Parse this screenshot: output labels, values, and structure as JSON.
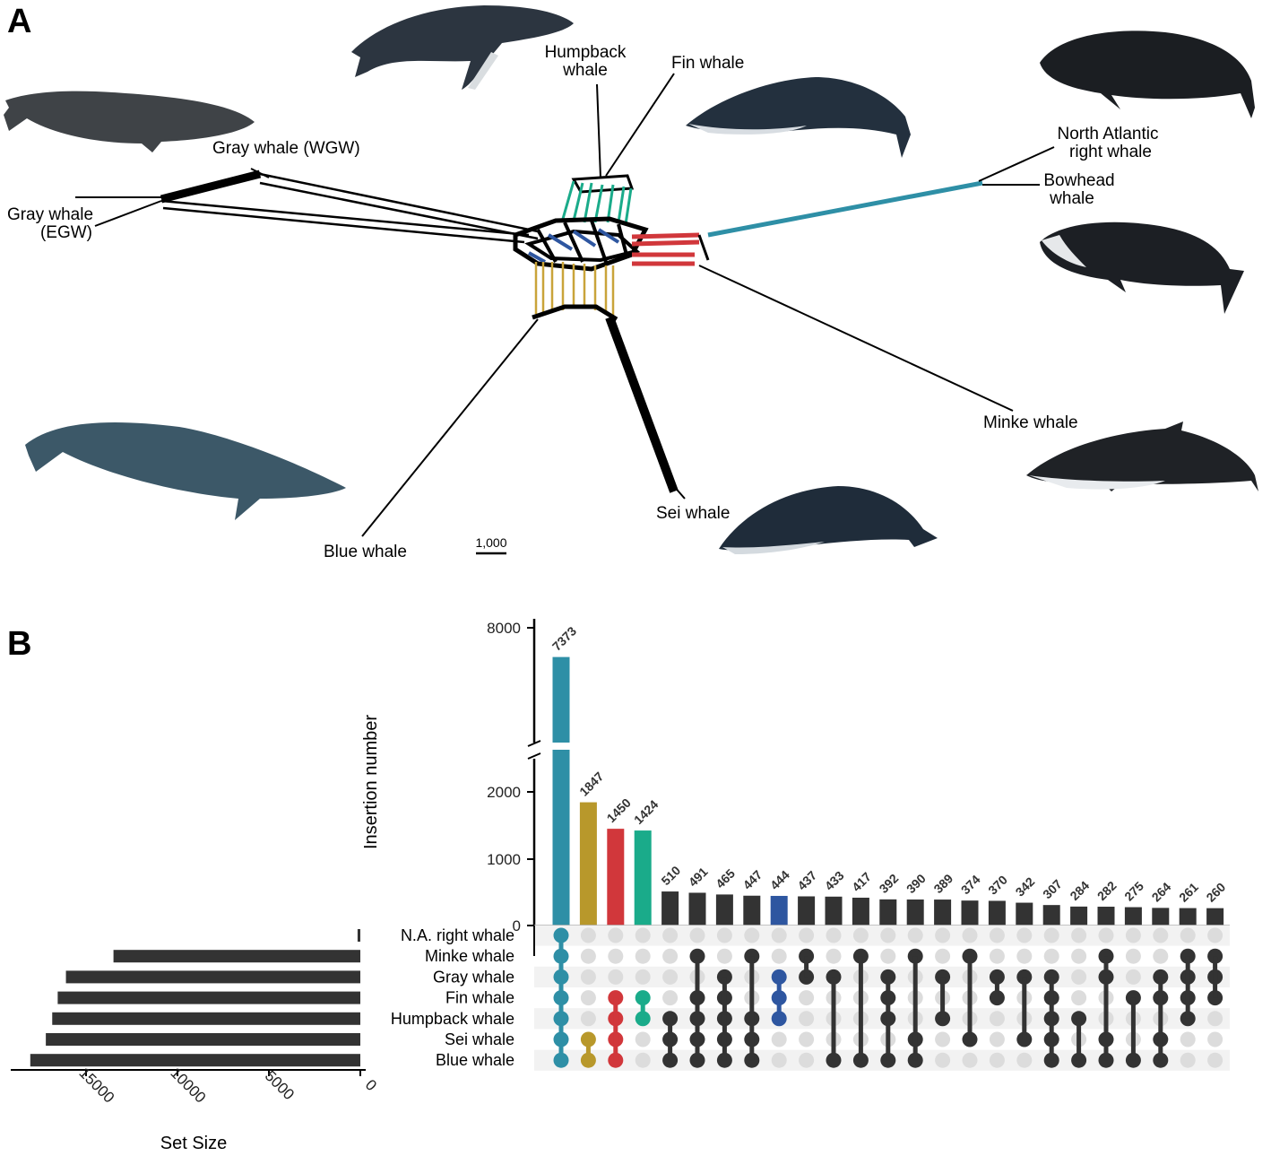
{
  "panel_a": {
    "letter": "A",
    "scale_bar": "1,000",
    "taxa": {
      "humpback": "Humpback\nwhale",
      "fin": "Fin whale",
      "gray_wgw": "Gray whale (WGW)",
      "gray_egw": "Gray whale\n(EGW)",
      "na_right": "North Atlantic\nright whale",
      "bowhead": "Bowhead\nwhale",
      "minke": "Minke whale",
      "sei": "Sei whale",
      "blue": "Blue whale"
    },
    "colors": {
      "humpback_split": "#1aab8a",
      "right_split": "#2e8fa6",
      "red_split": "#d1373b",
      "blue_split": "#2e56a0",
      "sei_split": "#c9a43a"
    }
  },
  "panel_b": {
    "letter": "B",
    "bar_axis_title": "Insertion number",
    "set_axis_title": "Set Size",
    "colors": {
      "teal": "#2e8fa6",
      "gold": "#b8982b",
      "red": "#d1373b",
      "green": "#1aab8a",
      "navy": "#2e56a0",
      "dark": "#333333",
      "dot_empty": "#dcdcdc",
      "stripe": "#f2f2f2"
    }
  },
  "chart_data": [
    {
      "type": "bar",
      "name": "intersection-sizes",
      "ylabel": "Insertion number",
      "yticks": [
        0,
        1000,
        2000,
        8000
      ],
      "axis_break": true,
      "values": [
        7373,
        1847,
        1450,
        1424,
        510,
        491,
        465,
        447,
        444,
        437,
        433,
        417,
        392,
        390,
        389,
        374,
        370,
        342,
        307,
        284,
        282,
        275,
        264,
        261,
        260
      ],
      "bar_colors": [
        "teal",
        "gold",
        "red",
        "green",
        "dark",
        "dark",
        "dark",
        "dark",
        "navy",
        "dark",
        "dark",
        "dark",
        "dark",
        "dark",
        "dark",
        "dark",
        "dark",
        "dark",
        "dark",
        "dark",
        "dark",
        "dark",
        "dark",
        "dark",
        "dark"
      ]
    },
    {
      "type": "table",
      "name": "intersection-matrix",
      "sets": [
        "N.A. right whale",
        "Minke whale",
        "Gray whale",
        "Fin whale",
        "Humpback whale",
        "Sei whale",
        "Blue whale"
      ],
      "memberships": [
        [
          0,
          1,
          2,
          3,
          4,
          5,
          6
        ],
        [
          5,
          6
        ],
        [
          3,
          4,
          5,
          6
        ],
        [
          3,
          4
        ],
        [
          4,
          5,
          6
        ],
        [
          1,
          3,
          4,
          5,
          6
        ],
        [
          2,
          3,
          4,
          5,
          6
        ],
        [
          1,
          4,
          5,
          6
        ],
        [
          2,
          3,
          4
        ],
        [
          1,
          2
        ],
        [
          2,
          6
        ],
        [
          1,
          6
        ],
        [
          2,
          3,
          4,
          6
        ],
        [
          1,
          5,
          6
        ],
        [
          2,
          4
        ],
        [
          1,
          5
        ],
        [
          2,
          3
        ],
        [
          2,
          5
        ],
        [
          2,
          3,
          4,
          5,
          6
        ],
        [
          4,
          6
        ],
        [
          1,
          2,
          5,
          6
        ],
        [
          3,
          6
        ],
        [
          2,
          3,
          5,
          6
        ],
        [
          1,
          2,
          3,
          4
        ],
        [
          1,
          2,
          3
        ]
      ]
    },
    {
      "type": "bar",
      "name": "set-sizes",
      "xlabel": "Set Size",
      "orientation": "horizontal-reversed",
      "xticks": [
        15000,
        10000,
        5000,
        0
      ],
      "categories": [
        "N.A. right whale",
        "Minke whale",
        "Gray whale",
        "Fin whale",
        "Humpback whale",
        "Sei whale",
        "Blue whale"
      ],
      "values": [
        150,
        13500,
        16100,
        16550,
        16850,
        17200,
        18050
      ]
    }
  ]
}
